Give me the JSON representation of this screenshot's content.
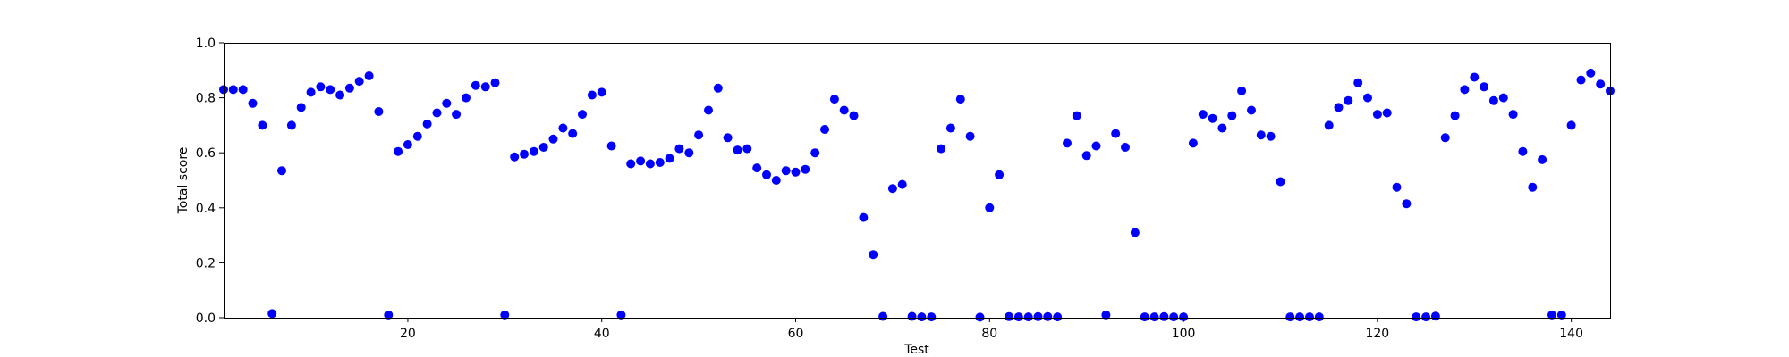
{
  "chart_data": {
    "type": "scatter",
    "title": "",
    "xlabel": "Test",
    "ylabel": "Total score",
    "xlim": [
      1,
      144
    ],
    "ylim": [
      0.0,
      1.0
    ],
    "xticks": [
      20,
      40,
      60,
      80,
      100,
      120,
      140
    ],
    "yticks": [
      0.0,
      0.2,
      0.4,
      0.6,
      0.8,
      1.0
    ],
    "ytick_labels": [
      "0.0",
      "0.2",
      "0.4",
      "0.6",
      "0.8",
      "1.0"
    ],
    "grid": false,
    "marker_color": "#0000ff",
    "points": [
      [
        1,
        0.83
      ],
      [
        2,
        0.83
      ],
      [
        3,
        0.83
      ],
      [
        4,
        0.78
      ],
      [
        5,
        0.7
      ],
      [
        6,
        0.015
      ],
      [
        7,
        0.535
      ],
      [
        8,
        0.7
      ],
      [
        9,
        0.765
      ],
      [
        10,
        0.82
      ],
      [
        11,
        0.84
      ],
      [
        12,
        0.83
      ],
      [
        13,
        0.81
      ],
      [
        14,
        0.835
      ],
      [
        15,
        0.86
      ],
      [
        16,
        0.88
      ],
      [
        17,
        0.75
      ],
      [
        18,
        0.01
      ],
      [
        19,
        0.605
      ],
      [
        20,
        0.63
      ],
      [
        21,
        0.66
      ],
      [
        22,
        0.705
      ],
      [
        23,
        0.745
      ],
      [
        24,
        0.78
      ],
      [
        25,
        0.74
      ],
      [
        26,
        0.8
      ],
      [
        27,
        0.845
      ],
      [
        28,
        0.84
      ],
      [
        29,
        0.855
      ],
      [
        30,
        0.01
      ],
      [
        31,
        0.585
      ],
      [
        32,
        0.595
      ],
      [
        33,
        0.605
      ],
      [
        34,
        0.62
      ],
      [
        35,
        0.65
      ],
      [
        36,
        0.69
      ],
      [
        37,
        0.67
      ],
      [
        38,
        0.74
      ],
      [
        39,
        0.81
      ],
      [
        40,
        0.82
      ],
      [
        41,
        0.625
      ],
      [
        42,
        0.01
      ],
      [
        43,
        0.56
      ],
      [
        44,
        0.57
      ],
      [
        45,
        0.56
      ],
      [
        46,
        0.565
      ],
      [
        47,
        0.58
      ],
      [
        48,
        0.615
      ],
      [
        49,
        0.6
      ],
      [
        50,
        0.665
      ],
      [
        51,
        0.755
      ],
      [
        52,
        0.835
      ],
      [
        53,
        0.655
      ],
      [
        54,
        0.61
      ],
      [
        55,
        0.615
      ],
      [
        56,
        0.545
      ],
      [
        57,
        0.52
      ],
      [
        58,
        0.5
      ],
      [
        59,
        0.535
      ],
      [
        60,
        0.53
      ],
      [
        61,
        0.54
      ],
      [
        62,
        0.6
      ],
      [
        63,
        0.685
      ],
      [
        64,
        0.795
      ],
      [
        65,
        0.755
      ],
      [
        66,
        0.735
      ],
      [
        67,
        0.365
      ],
      [
        68,
        0.23
      ],
      [
        69,
        0.005
      ],
      [
        70,
        0.47
      ],
      [
        71,
        0.485
      ],
      [
        72,
        0.005
      ],
      [
        73,
        0.003
      ],
      [
        74,
        0.003
      ],
      [
        75,
        0.615
      ],
      [
        76,
        0.69
      ],
      [
        77,
        0.795
      ],
      [
        78,
        0.66
      ],
      [
        79,
        0.002
      ],
      [
        80,
        0.4
      ],
      [
        81,
        0.52
      ],
      [
        82,
        0.004
      ],
      [
        83,
        0.003
      ],
      [
        84,
        0.003
      ],
      [
        85,
        0.004
      ],
      [
        86,
        0.004
      ],
      [
        87,
        0.003
      ],
      [
        88,
        0.635
      ],
      [
        89,
        0.735
      ],
      [
        90,
        0.59
      ],
      [
        91,
        0.625
      ],
      [
        92,
        0.01
      ],
      [
        93,
        0.67
      ],
      [
        94,
        0.62
      ],
      [
        95,
        0.31
      ],
      [
        96,
        0.003
      ],
      [
        97,
        0.003
      ],
      [
        98,
        0.004
      ],
      [
        99,
        0.003
      ],
      [
        100,
        0.003
      ],
      [
        101,
        0.635
      ],
      [
        102,
        0.74
      ],
      [
        103,
        0.725
      ],
      [
        104,
        0.69
      ],
      [
        105,
        0.735
      ],
      [
        106,
        0.825
      ],
      [
        107,
        0.755
      ],
      [
        108,
        0.665
      ],
      [
        109,
        0.66
      ],
      [
        110,
        0.495
      ],
      [
        111,
        0.003
      ],
      [
        112,
        0.003
      ],
      [
        113,
        0.003
      ],
      [
        114,
        0.003
      ],
      [
        115,
        0.7
      ],
      [
        116,
        0.765
      ],
      [
        117,
        0.79
      ],
      [
        118,
        0.855
      ],
      [
        119,
        0.8
      ],
      [
        120,
        0.74
      ],
      [
        121,
        0.745
      ],
      [
        122,
        0.475
      ],
      [
        123,
        0.415
      ],
      [
        124,
        0.003
      ],
      [
        125,
        0.003
      ],
      [
        126,
        0.006
      ],
      [
        127,
        0.655
      ],
      [
        128,
        0.735
      ],
      [
        129,
        0.83
      ],
      [
        130,
        0.875
      ],
      [
        131,
        0.84
      ],
      [
        132,
        0.79
      ],
      [
        133,
        0.8
      ],
      [
        134,
        0.74
      ],
      [
        135,
        0.605
      ],
      [
        136,
        0.475
      ],
      [
        137,
        0.575
      ],
      [
        138,
        0.01
      ],
      [
        139,
        0.01
      ],
      [
        140,
        0.7
      ],
      [
        141,
        0.865
      ],
      [
        142,
        0.89
      ],
      [
        143,
        0.85
      ],
      [
        144,
        0.825
      ]
    ]
  }
}
